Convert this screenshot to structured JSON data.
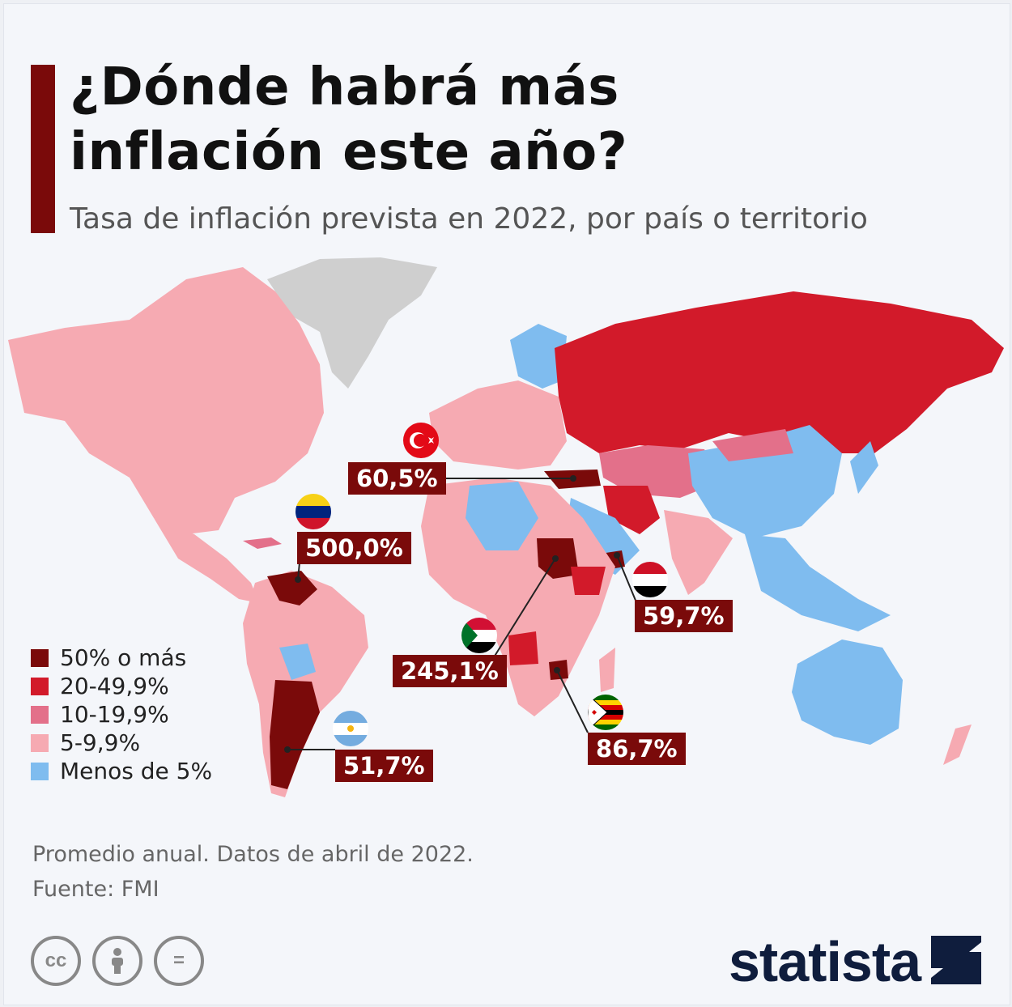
{
  "header": {
    "title_line1": "¿Dónde habrá más",
    "title_line2": "inflación este año?",
    "subtitle": "Tasa de inflación prevista en 2022, por país o territorio"
  },
  "colors": {
    "accent": "#7a0a0a",
    "cat_50_plus": "#7a0a0a",
    "cat_20_49": "#d21a2a",
    "cat_10_19": "#e3708a",
    "cat_5_9": "#f6aab2",
    "cat_under_5": "#7fbcef",
    "no_data": "#cfcfcf"
  },
  "legend": {
    "items": [
      {
        "label": "50% o más",
        "color": "#7a0a0a"
      },
      {
        "label": "20-49,9%",
        "color": "#d21a2a"
      },
      {
        "label": "10-19,9%",
        "color": "#e3708a"
      },
      {
        "label": "5-9,9%",
        "color": "#f6aab2"
      },
      {
        "label": "Menos de 5%",
        "color": "#7fbcef"
      }
    ]
  },
  "callouts": {
    "turkey": {
      "value": "60,5%",
      "flag": "turkey-flag-icon"
    },
    "venezuela": {
      "value": "500,0%",
      "flag": "venezuela-flag-icon"
    },
    "yemen": {
      "value": "59,7%",
      "flag": "yemen-flag-icon"
    },
    "sudan": {
      "value": "245,1%",
      "flag": "sudan-flag-icon"
    },
    "zimbabwe": {
      "value": "86,7%",
      "flag": "zimbabwe-flag-icon"
    },
    "argentina": {
      "value": "51,7%",
      "flag": "argentina-flag-icon"
    }
  },
  "footer": {
    "note": "Promedio anual. Datos de abril de 2022.",
    "source": "Fuente: FMI"
  },
  "license_icons": [
    {
      "icon": "cc-icon",
      "label": "cc"
    },
    {
      "icon": "attribution-icon",
      "label": ""
    },
    {
      "icon": "no-derivatives-icon",
      "label": "="
    }
  ],
  "brand": {
    "name": "statista"
  }
}
